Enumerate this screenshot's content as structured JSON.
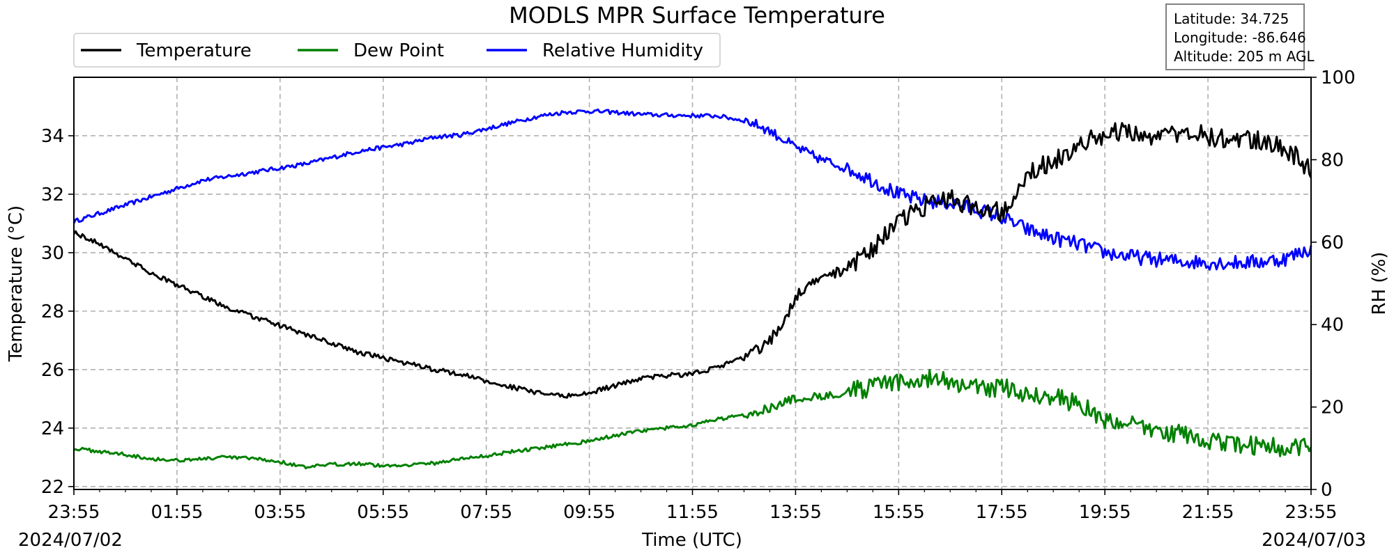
{
  "chart_data": {
    "type": "line",
    "title": "MODLS MPR Surface Temperature",
    "xlabel": "Time (UTC)",
    "ylabel_left": "Temperature ($^\\circ$C)",
    "ylabel_left_display": "Temperature (°C)",
    "ylabel_right": "RH (%)",
    "x_ticks": [
      "23:55",
      "01:55",
      "03:55",
      "05:55",
      "07:55",
      "09:55",
      "11:55",
      "13:55",
      "15:55",
      "17:55",
      "19:55",
      "21:55",
      "23:55"
    ],
    "x_tick_hours": [
      0,
      2,
      4,
      6,
      8,
      10,
      12,
      14,
      16,
      18,
      20,
      22,
      24
    ],
    "x_range_hours": [
      0,
      24
    ],
    "start_date": "2024/07/02",
    "end_date": "2024/07/03",
    "ylim_left": [
      21.9,
      36.0
    ],
    "yticks_left": [
      22,
      24,
      26,
      28,
      30,
      32,
      34
    ],
    "ylim_right": [
      0,
      100
    ],
    "yticks_right": [
      0,
      20,
      40,
      60,
      80,
      100
    ],
    "grid": true,
    "legend_position": "top-left",
    "series": [
      {
        "name": "Temperature",
        "axis": "left",
        "color": "#000000",
        "x_hours": [
          0,
          0.5,
          1,
          1.5,
          2,
          2.5,
          3,
          3.5,
          4,
          4.5,
          5,
          5.5,
          6,
          6.5,
          7,
          7.5,
          8,
          8.5,
          9,
          9.5,
          10,
          10.5,
          11,
          11.5,
          12,
          12.5,
          13,
          13.25,
          13.5,
          13.75,
          14,
          14.5,
          15,
          15.5,
          16,
          16.5,
          17,
          17.5,
          18,
          18.5,
          19,
          19.5,
          20,
          20.5,
          21,
          21.5,
          22,
          22.5,
          23,
          23.5,
          24
        ],
        "values": [
          30.7,
          30.3,
          29.8,
          29.3,
          28.9,
          28.5,
          28.1,
          27.8,
          27.5,
          27.2,
          26.9,
          26.6,
          26.4,
          26.2,
          26.0,
          25.85,
          25.6,
          25.4,
          25.2,
          25.1,
          25.2,
          25.45,
          25.7,
          25.8,
          25.85,
          26.1,
          26.4,
          26.65,
          27.0,
          27.6,
          28.5,
          29.1,
          29.5,
          30.2,
          31.0,
          31.6,
          31.8,
          31.6,
          31.4,
          32.8,
          33.1,
          33.6,
          34.1,
          34.2,
          33.9,
          34.2,
          34.0,
          33.9,
          33.8,
          33.6,
          32.8
        ]
      },
      {
        "name": "Dew Point",
        "axis": "left",
        "color": "#008000",
        "x_hours": [
          0,
          0.5,
          1,
          1.5,
          2,
          2.5,
          3,
          3.5,
          4,
          4.5,
          5,
          5.5,
          6,
          6.5,
          7,
          7.5,
          8,
          8.5,
          9,
          9.5,
          10,
          10.5,
          11,
          11.5,
          12,
          12.5,
          13,
          13.5,
          14,
          14.5,
          15,
          15.5,
          16,
          16.5,
          17,
          17.5,
          18,
          18.5,
          19,
          19.5,
          20,
          20.5,
          21,
          21.5,
          22,
          22.5,
          23,
          23.5,
          24
        ],
        "values": [
          23.3,
          23.2,
          23.1,
          22.95,
          22.9,
          22.95,
          23.0,
          22.95,
          22.85,
          22.65,
          22.75,
          22.8,
          22.7,
          22.75,
          22.8,
          22.95,
          23.05,
          23.2,
          23.3,
          23.45,
          23.55,
          23.75,
          23.9,
          24.0,
          24.1,
          24.3,
          24.45,
          24.7,
          25.0,
          25.1,
          25.25,
          25.4,
          25.55,
          25.7,
          25.6,
          25.35,
          25.4,
          25.15,
          25.1,
          24.8,
          24.3,
          24.1,
          23.9,
          23.8,
          23.6,
          23.4,
          23.4,
          23.3,
          23.4
        ]
      },
      {
        "name": "Relative Humidity",
        "axis": "right",
        "color": "#0000ff",
        "x_hours": [
          0,
          0.5,
          1,
          1.5,
          2,
          2.5,
          3,
          3.5,
          4,
          4.5,
          5,
          5.5,
          6,
          6.5,
          7,
          7.5,
          8,
          8.5,
          9,
          9.5,
          10,
          10.5,
          11,
          11.5,
          12,
          12.5,
          13,
          13.25,
          13.5,
          14,
          14.5,
          15,
          15.5,
          16,
          16.5,
          17,
          17.5,
          18,
          18.5,
          19,
          19.5,
          20,
          20.5,
          21,
          21.5,
          22,
          22.5,
          23,
          23.5,
          24
        ],
        "values": [
          65,
          67,
          69,
          71,
          73,
          75,
          76,
          77,
          78,
          79,
          80.5,
          82,
          83,
          84,
          85.5,
          86,
          87.5,
          89,
          90.5,
          91.5,
          91.8,
          91.5,
          91,
          90.8,
          90.7,
          90.6,
          89.5,
          88.5,
          87,
          83,
          80,
          78,
          75,
          71.5,
          70,
          69.5,
          68,
          66,
          63,
          61,
          59.5,
          57.5,
          56.5,
          55.8,
          55.3,
          55.1,
          55,
          55.2,
          56,
          58.5
        ]
      }
    ],
    "info_box": {
      "latitude": "Latitude: 34.725",
      "longitude": "Longitude: -86.646",
      "altitude": "Altitude: 205 m AGL"
    }
  }
}
